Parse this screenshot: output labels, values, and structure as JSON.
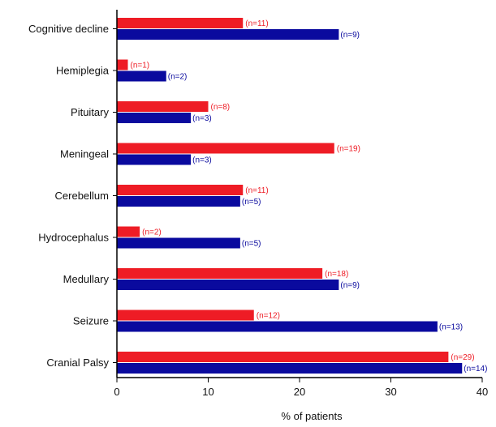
{
  "chart_data": {
    "type": "bar",
    "orientation": "horizontal",
    "categories": [
      "Cognitive decline",
      "Hemiplegia",
      "Pituitary",
      "Meningeal",
      "Cerebellum",
      "Hydrocephalus",
      "Medullary",
      "Seizure",
      "Cranial Palsy"
    ],
    "series": [
      {
        "color": "#ee1c25",
        "values": [
          13.8,
          1.2,
          10.0,
          23.8,
          13.8,
          2.5,
          22.5,
          15.0,
          36.3
        ],
        "labels": [
          "(n=11)",
          "(n=1)",
          "(n=8)",
          "(n=19)",
          "(n=11)",
          "(n=2)",
          "(n=18)",
          "(n=12)",
          "(n=29)"
        ]
      },
      {
        "color": "#0a0a9e",
        "values": [
          24.3,
          5.4,
          8.1,
          8.1,
          13.5,
          13.5,
          24.3,
          35.1,
          37.8
        ],
        "labels": [
          "(n=9)",
          "(n=2)",
          "(n=3)",
          "(n=3)",
          "(n=5)",
          "(n=5)",
          "(n=9)",
          "(n=13)",
          "(n=14)"
        ]
      }
    ],
    "xlim": [
      0,
      40
    ],
    "xticks": [
      "0",
      "10",
      "20",
      "30",
      "40"
    ],
    "xlabel": "% of patients",
    "ylabel": "",
    "title": "",
    "grid": false,
    "legend": false
  }
}
